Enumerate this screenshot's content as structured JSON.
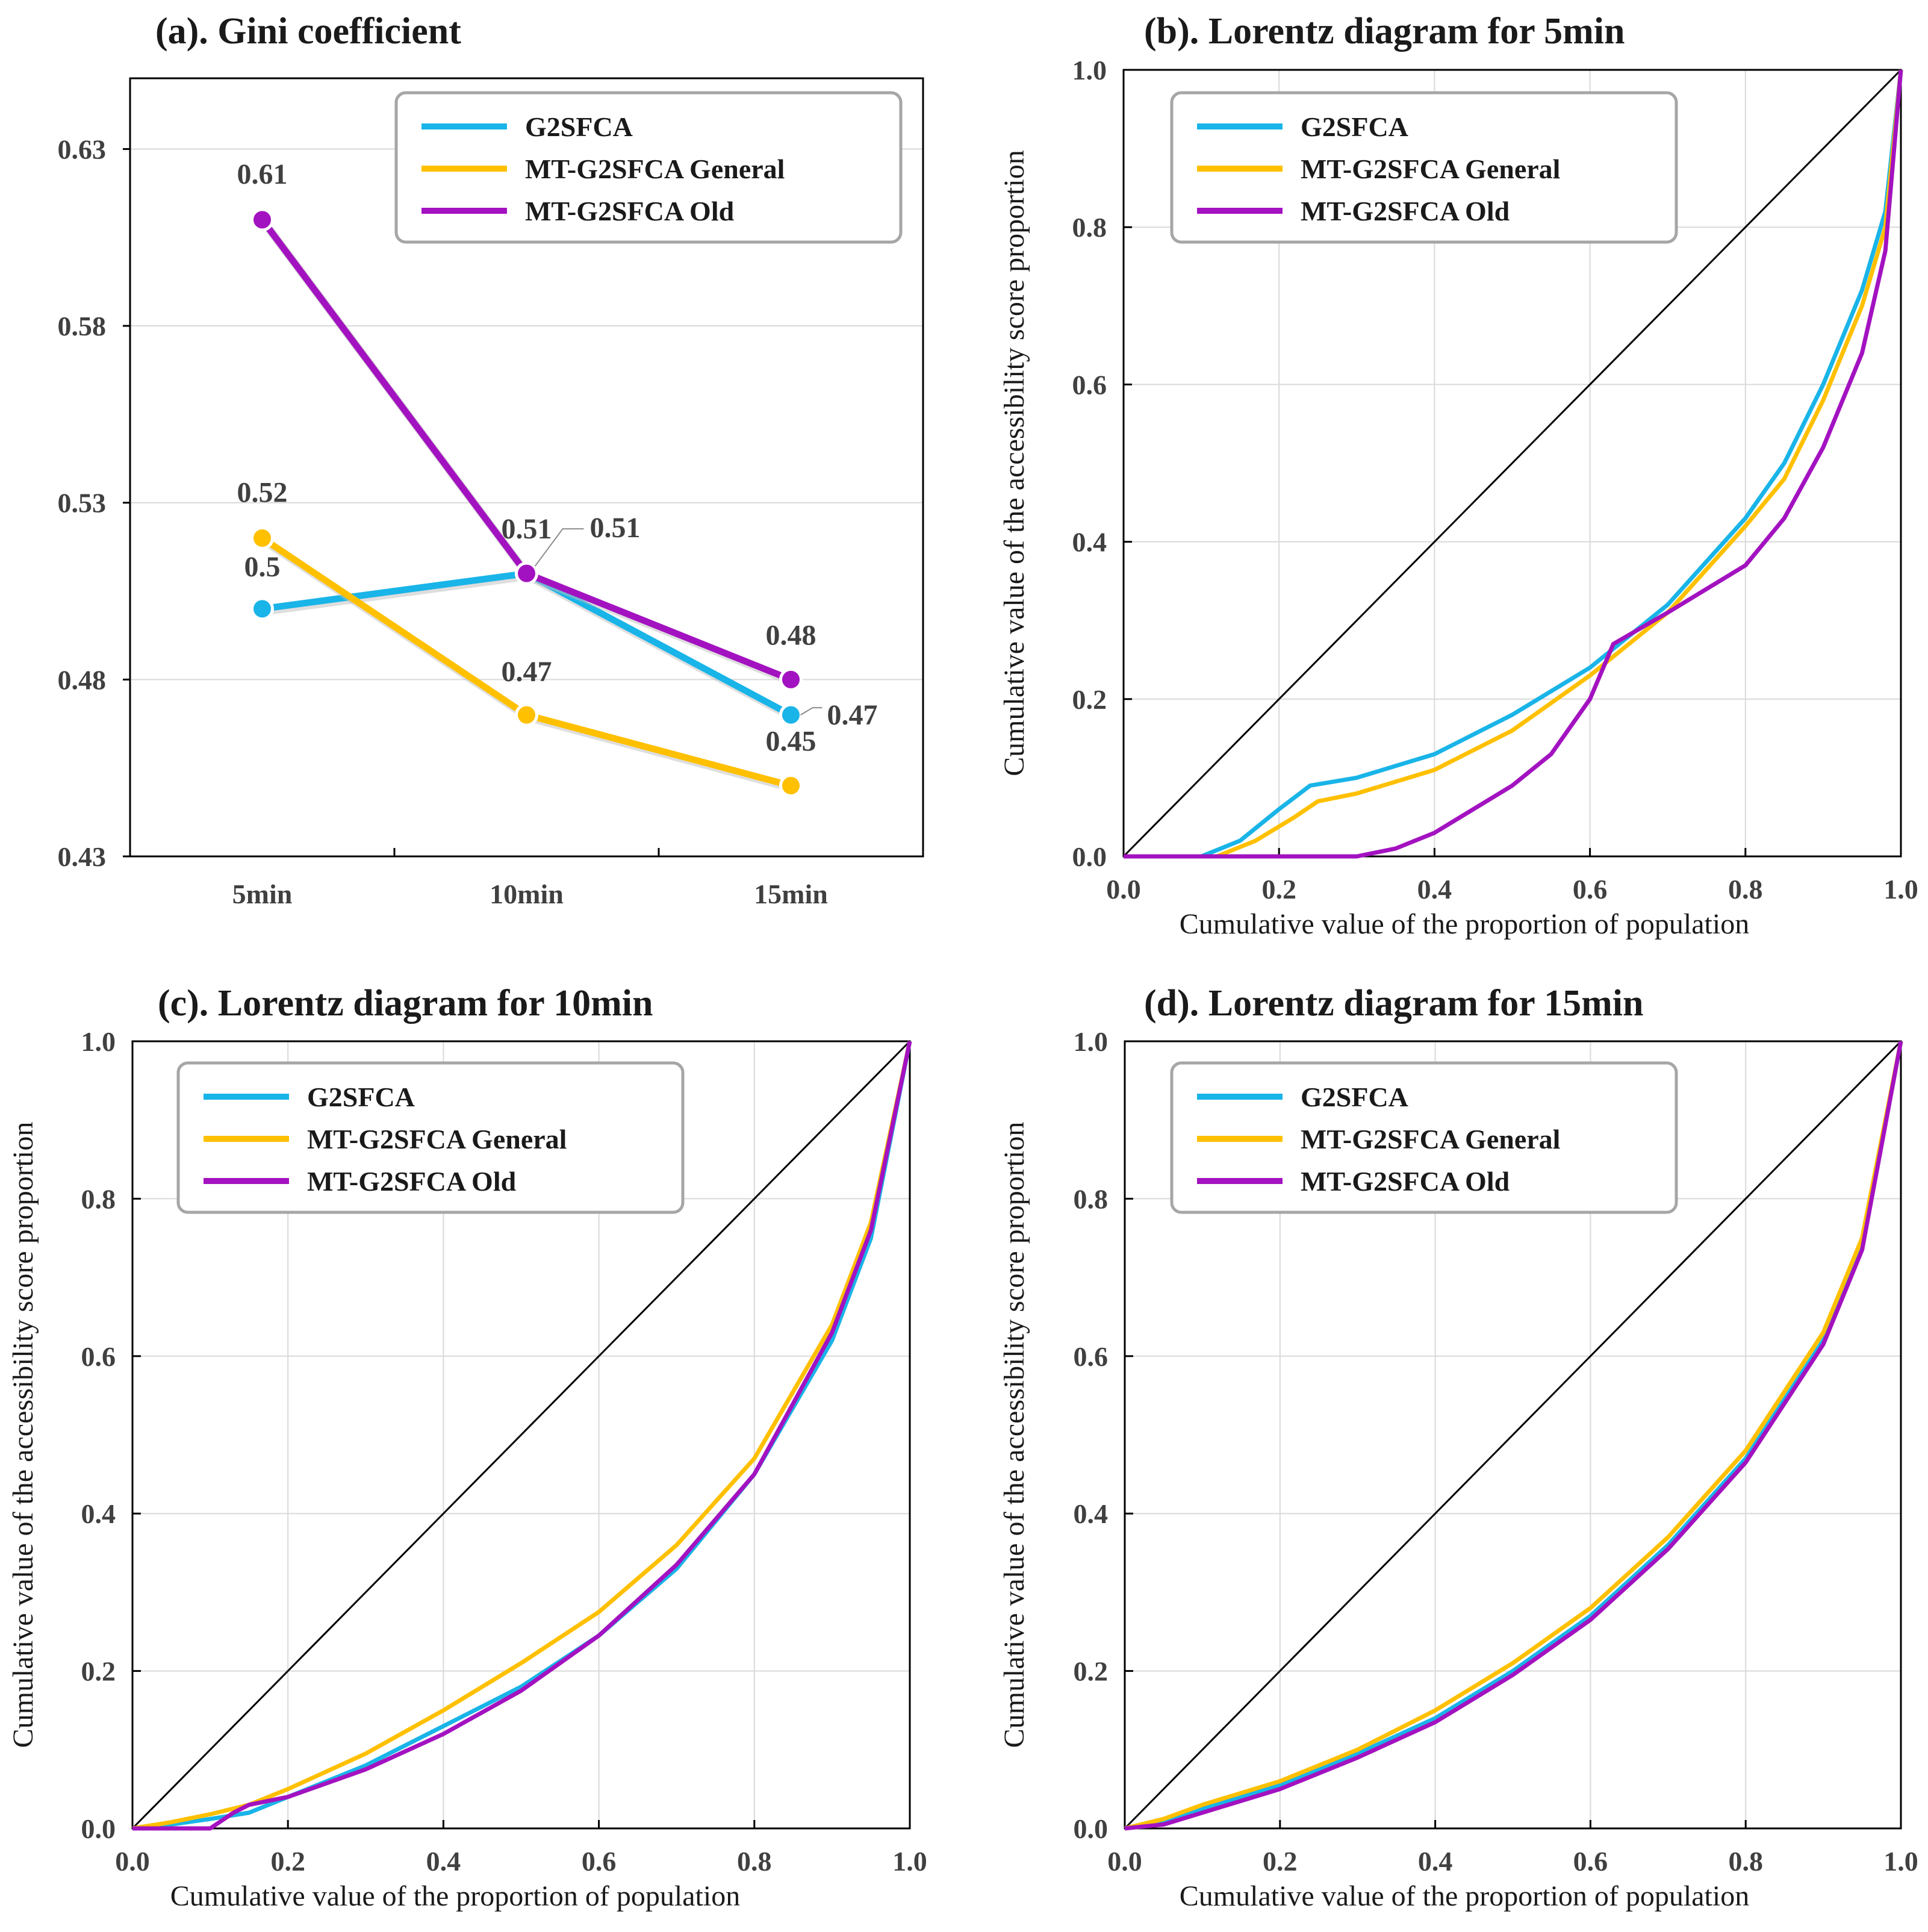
{
  "colors": {
    "G2SFCA": "#19b4e8",
    "MT-G2SFCA General": "#ffc000",
    "MT-G2SFCA Old": "#a312c0",
    "equality": "#000000",
    "grid": "#d9d9d9"
  },
  "chart_data": [
    {
      "type": "line",
      "id": "a",
      "title": "(a). Gini coefficient",
      "xlabel": "",
      "ylabel": "",
      "categories": [
        "5min",
        "10min",
        "15min"
      ],
      "ylim": [
        0.43,
        0.65
      ],
      "yticks": [
        0.43,
        0.48,
        0.53,
        0.58,
        0.63
      ],
      "ytick_labels": [
        "0.43",
        "0.48",
        "0.53",
        "0.58",
        "0.63"
      ],
      "legend_position": "top-right",
      "series": [
        {
          "name": "G2SFCA",
          "values": [
            0.5,
            0.51,
            0.47
          ],
          "labels": [
            "0.5",
            "0.51",
            "0.47"
          ]
        },
        {
          "name": "MT-G2SFCA General",
          "values": [
            0.52,
            0.47,
            0.45
          ],
          "labels": [
            "0.52",
            "0.47",
            "0.45"
          ]
        },
        {
          "name": "MT-G2SFCA Old",
          "values": [
            0.61,
            0.51,
            0.48
          ],
          "labels": [
            "0.61",
            "0.51",
            "0.48"
          ]
        }
      ]
    },
    {
      "type": "line",
      "id": "b",
      "title": "(b). Lorentz diagram for 5min",
      "xlabel": "Cumulative value of the proportion of population",
      "ylabel": "Cumulative value of the accessibility score proportion",
      "xlim": [
        0,
        1
      ],
      "ylim": [
        0,
        1
      ],
      "ticks": [
        0,
        0.2,
        0.4,
        0.6,
        0.8,
        1
      ],
      "xtick_labels": [
        "0.0",
        "0.2",
        "0.4",
        "0.6",
        "0.8",
        "1.0"
      ],
      "ytick_labels": [
        "0.0",
        "0.2",
        "0.4",
        "0.6",
        "0.8",
        "1.0"
      ],
      "legend_position": "top-left",
      "equality_line": [
        [
          0,
          0
        ],
        [
          1,
          1
        ]
      ],
      "series": [
        {
          "name": "G2SFCA",
          "x": [
            0,
            0.1,
            0.15,
            0.2,
            0.24,
            0.3,
            0.4,
            0.5,
            0.6,
            0.7,
            0.8,
            0.85,
            0.9,
            0.95,
            0.98,
            1.0
          ],
          "y": [
            0,
            0,
            0.02,
            0.06,
            0.09,
            0.1,
            0.13,
            0.18,
            0.24,
            0.32,
            0.43,
            0.5,
            0.6,
            0.72,
            0.82,
            1.0
          ]
        },
        {
          "name": "MT-G2SFCA General",
          "x": [
            0,
            0.12,
            0.17,
            0.22,
            0.25,
            0.3,
            0.4,
            0.5,
            0.6,
            0.7,
            0.8,
            0.85,
            0.9,
            0.95,
            0.98,
            1.0
          ],
          "y": [
            0,
            0,
            0.02,
            0.05,
            0.07,
            0.08,
            0.11,
            0.16,
            0.23,
            0.31,
            0.42,
            0.48,
            0.58,
            0.7,
            0.8,
            1.0
          ]
        },
        {
          "name": "MT-G2SFCA Old",
          "x": [
            0,
            0.3,
            0.35,
            0.4,
            0.45,
            0.5,
            0.55,
            0.6,
            0.63,
            0.7,
            0.8,
            0.85,
            0.9,
            0.95,
            0.98,
            1.0
          ],
          "y": [
            0,
            0,
            0.01,
            0.03,
            0.06,
            0.09,
            0.13,
            0.2,
            0.27,
            0.31,
            0.37,
            0.43,
            0.52,
            0.64,
            0.77,
            1.0
          ]
        }
      ]
    },
    {
      "type": "line",
      "id": "c",
      "title": "(c). Lorentz diagram for 10min",
      "xlabel": "Cumulative value of the proportion of population",
      "ylabel": "Cumulative value of the accessibility score proportion",
      "xlim": [
        0,
        1
      ],
      "ylim": [
        0,
        1
      ],
      "ticks": [
        0,
        0.2,
        0.4,
        0.6,
        0.8,
        1
      ],
      "xtick_labels": [
        "0.0",
        "0.2",
        "0.4",
        "0.6",
        "0.8",
        "1.0"
      ],
      "ytick_labels": [
        "0.0",
        "0.2",
        "0.4",
        "0.6",
        "0.8",
        "1.0"
      ],
      "legend_position": "top-left",
      "equality_line": [
        [
          0,
          0
        ],
        [
          1,
          1
        ]
      ],
      "series": [
        {
          "name": "G2SFCA",
          "x": [
            0,
            0.05,
            0.1,
            0.15,
            0.2,
            0.3,
            0.4,
            0.5,
            0.6,
            0.7,
            0.8,
            0.9,
            0.95,
            1.0
          ],
          "y": [
            0,
            0.005,
            0.012,
            0.02,
            0.04,
            0.08,
            0.13,
            0.18,
            0.245,
            0.33,
            0.45,
            0.62,
            0.75,
            1.0
          ]
        },
        {
          "name": "MT-G2SFCA General",
          "x": [
            0,
            0.05,
            0.1,
            0.15,
            0.2,
            0.3,
            0.4,
            0.5,
            0.6,
            0.7,
            0.8,
            0.9,
            0.95,
            1.0
          ],
          "y": [
            0,
            0.008,
            0.018,
            0.03,
            0.05,
            0.095,
            0.15,
            0.21,
            0.275,
            0.36,
            0.47,
            0.64,
            0.77,
            1.0
          ]
        },
        {
          "name": "MT-G2SFCA Old",
          "x": [
            0,
            0.1,
            0.13,
            0.15,
            0.2,
            0.3,
            0.4,
            0.5,
            0.6,
            0.7,
            0.8,
            0.9,
            0.95,
            1.0
          ],
          "y": [
            0,
            0,
            0.02,
            0.03,
            0.04,
            0.075,
            0.12,
            0.175,
            0.245,
            0.335,
            0.45,
            0.63,
            0.76,
            1.0
          ]
        }
      ]
    },
    {
      "type": "line",
      "id": "d",
      "title": "(d). Lorentz diagram for 15min",
      "xlabel": "Cumulative value of the proportion of population",
      "ylabel": "Cumulative value of the accessibility score proportion",
      "xlim": [
        0,
        1
      ],
      "ylim": [
        0,
        1
      ],
      "ticks": [
        0,
        0.2,
        0.4,
        0.6,
        0.8,
        1
      ],
      "xtick_labels": [
        "0.0",
        "0.2",
        "0.4",
        "0.6",
        "0.8",
        "1.0"
      ],
      "ytick_labels": [
        "0.0",
        "0.2",
        "0.4",
        "0.6",
        "0.8",
        "1.0"
      ],
      "legend_position": "top-left",
      "equality_line": [
        [
          0,
          0
        ],
        [
          1,
          1
        ]
      ],
      "series": [
        {
          "name": "G2SFCA",
          "x": [
            0,
            0.05,
            0.1,
            0.2,
            0.3,
            0.4,
            0.5,
            0.6,
            0.7,
            0.8,
            0.9,
            0.95,
            1.0
          ],
          "y": [
            0,
            0.01,
            0.025,
            0.055,
            0.095,
            0.14,
            0.2,
            0.27,
            0.36,
            0.47,
            0.62,
            0.74,
            1.0
          ]
        },
        {
          "name": "MT-G2SFCA General",
          "x": [
            0,
            0.05,
            0.1,
            0.2,
            0.3,
            0.4,
            0.5,
            0.6,
            0.7,
            0.8,
            0.9,
            0.95,
            1.0
          ],
          "y": [
            0,
            0.012,
            0.03,
            0.06,
            0.1,
            0.15,
            0.21,
            0.28,
            0.37,
            0.48,
            0.63,
            0.75,
            1.0
          ]
        },
        {
          "name": "MT-G2SFCA Old",
          "x": [
            0,
            0.05,
            0.1,
            0.2,
            0.3,
            0.4,
            0.5,
            0.6,
            0.7,
            0.8,
            0.9,
            0.95,
            1.0
          ],
          "y": [
            0,
            0.005,
            0.02,
            0.05,
            0.09,
            0.135,
            0.195,
            0.265,
            0.355,
            0.465,
            0.615,
            0.735,
            1.0
          ]
        }
      ]
    }
  ]
}
